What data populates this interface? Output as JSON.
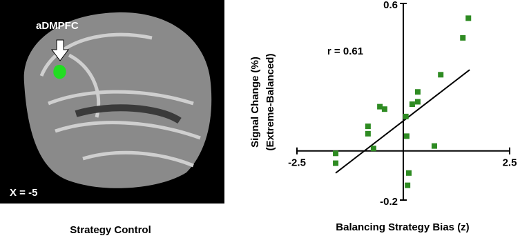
{
  "image_panel": {
    "region_label": "aDMPFC",
    "slice_label": "X = -5",
    "caption": "Strategy Control"
  },
  "chart_data": {
    "type": "scatter",
    "annotation": "r = 0.61",
    "x_label": "Balancing Strategy Bias (z)",
    "y_label": [
      "Signal Change (%)",
      "(Extreme-Balanced)"
    ],
    "xlim": [
      -2.5,
      2.5
    ],
    "xticks": [
      -2.5,
      2.5
    ],
    "ylim": [
      -0.2,
      0.6
    ],
    "yticks": [
      -0.2,
      0.6
    ],
    "color": "#2e8b22",
    "x": [
      1.53,
      1.4,
      0.88,
      0.34,
      0.34,
      0.21,
      -0.55,
      -0.44,
      -0.83,
      -0.83,
      -0.7,
      -1.59,
      -1.59,
      0.08,
      0.13,
      0.1,
      0.73,
      0.06
    ],
    "values": [
      0.54,
      0.46,
      0.31,
      0.24,
      0.2,
      0.19,
      0.18,
      0.17,
      0.1,
      0.07,
      0.01,
      -0.01,
      -0.05,
      0.06,
      -0.09,
      -0.14,
      0.02,
      0.14
    ],
    "fit": {
      "x": [
        -1.59,
        1.56
      ],
      "y": [
        -0.09,
        0.33
      ]
    }
  }
}
